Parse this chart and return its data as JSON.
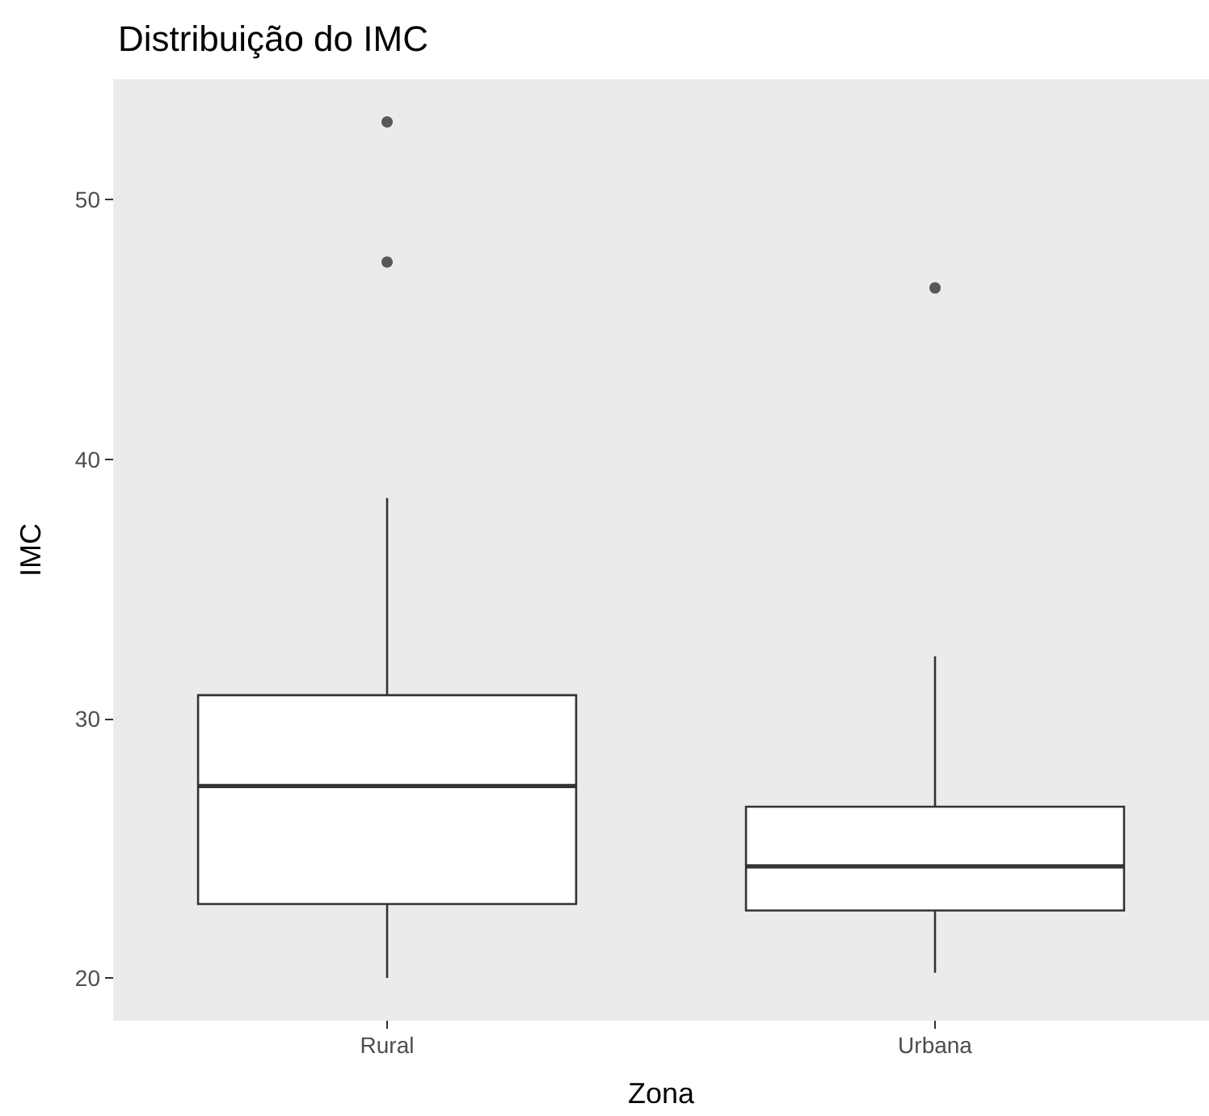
{
  "chart_data": {
    "type": "box",
    "title": "Distribuição do IMC",
    "xlabel": "Zona",
    "ylabel": "IMC",
    "categories": [
      "Rural",
      "Urbana"
    ],
    "boxes": [
      {
        "low": 20.0,
        "q1": 22.85,
        "median": 27.4,
        "q3": 30.9,
        "high": 38.5,
        "outliers": [
          53.0,
          47.6
        ]
      },
      {
        "low": 20.2,
        "q1": 22.6,
        "median": 24.3,
        "q3": 26.6,
        "high": 32.4,
        "outliers": [
          46.6
        ]
      }
    ],
    "ylim": [
      18.35,
      54.65
    ],
    "yticks": [
      20,
      30,
      40,
      50
    ],
    "grid": false
  }
}
